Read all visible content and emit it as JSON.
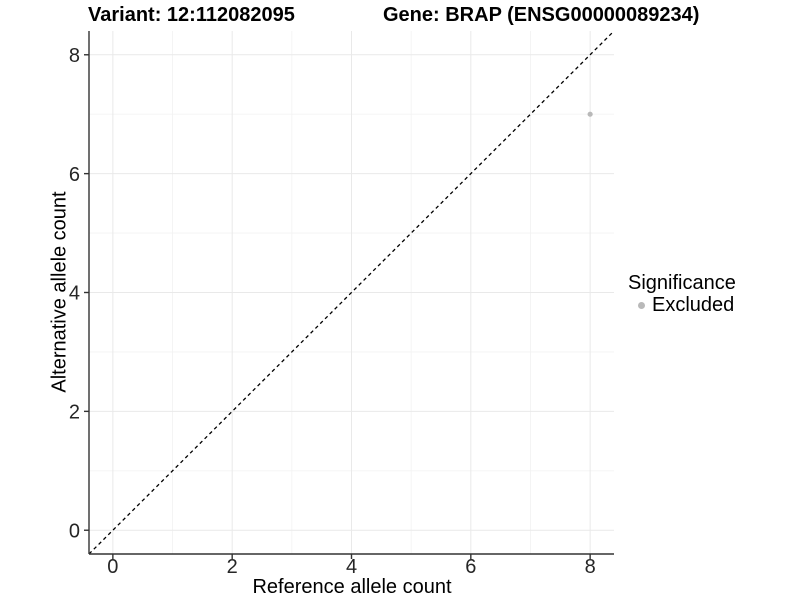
{
  "chart_data": {
    "type": "scatter",
    "title_left": "Variant: 12:112082095",
    "title_right": "Gene: BRAP (ENSG00000089234)",
    "xlabel": "Reference allele count",
    "ylabel": "Alternative allele count",
    "xlim": [
      -0.4,
      8.4
    ],
    "ylim": [
      -0.4,
      8.4
    ],
    "x_ticks": [
      0,
      2,
      4,
      6,
      8
    ],
    "y_ticks": [
      0,
      2,
      4,
      6,
      8
    ],
    "x_minor_ticks": [
      1,
      3,
      5,
      7
    ],
    "y_minor_ticks": [
      1,
      3,
      5,
      7
    ],
    "grid": "major and minor, light gray on white",
    "points": [
      {
        "x": 8,
        "y": 7,
        "series": "Excluded"
      }
    ],
    "identity_line": {
      "show": true,
      "style": "dashed",
      "from": [
        -0.4,
        -0.4
      ],
      "to": [
        8.4,
        8.4
      ]
    },
    "legend": {
      "title": "Significance",
      "position": "right",
      "items": [
        {
          "label": "Excluded",
          "marker": "circle",
          "color": "#b9b9b9"
        }
      ]
    },
    "colors": {
      "point_excluded": "#b9b9b9",
      "identity_line": "#000000",
      "grid_major": "#e9e9e9",
      "grid_minor": "#f3f3f3",
      "axis_line": "#333333",
      "tick_mark": "#333333",
      "tick_label": "#262626",
      "text": "#000000"
    }
  }
}
